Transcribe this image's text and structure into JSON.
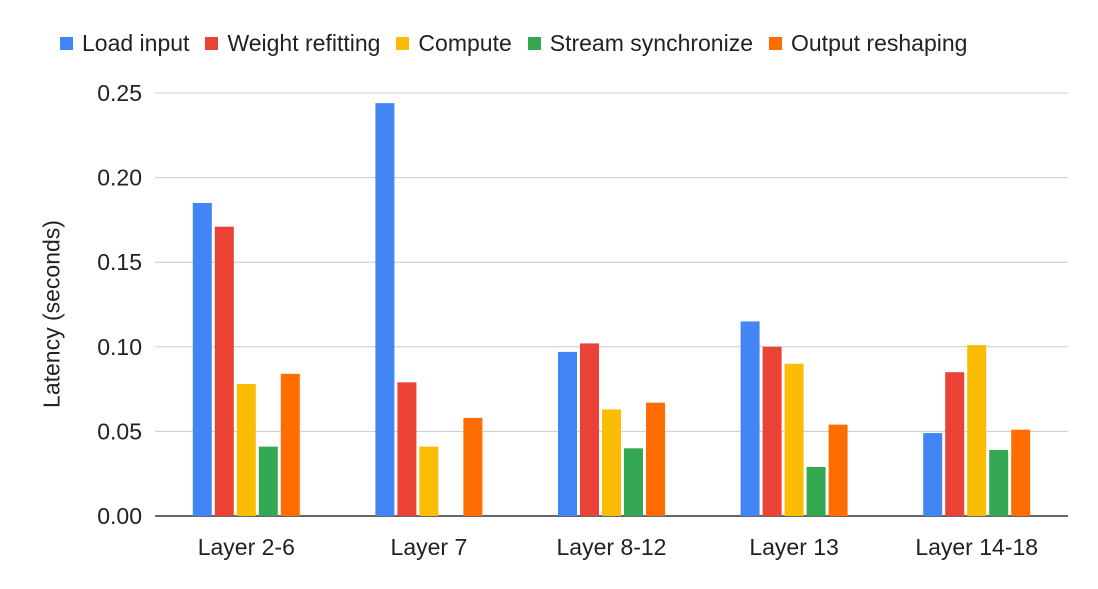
{
  "chart_data": {
    "type": "bar",
    "title": "",
    "xlabel": "",
    "ylabel": "Latency (seconds)",
    "ylim": [
      0,
      0.25
    ],
    "yticks": [
      "0.00",
      "0.05",
      "0.10",
      "0.15",
      "0.20",
      "0.25"
    ],
    "grid": true,
    "legend_position": "top",
    "categories": [
      "Layer 2-6",
      "Layer 7",
      "Layer 8-12",
      "Layer 13",
      "Layer 14-18"
    ],
    "series": [
      {
        "name": "Load input",
        "color": "#4285F4",
        "values": [
          0.185,
          0.244,
          0.097,
          0.115,
          0.049
        ]
      },
      {
        "name": "Weight refitting",
        "color": "#EA4335",
        "values": [
          0.171,
          0.079,
          0.102,
          0.1,
          0.085
        ]
      },
      {
        "name": "Compute",
        "color": "#FBBC04",
        "values": [
          0.078,
          0.041,
          0.063,
          0.09,
          0.101
        ]
      },
      {
        "name": "Stream synchronize",
        "color": "#34A853",
        "values": [
          0.041,
          0,
          0.04,
          0.029,
          0.039
        ]
      },
      {
        "name": "Output reshaping",
        "color": "#FF6D01",
        "values": [
          0.084,
          0.058,
          0.067,
          0.054,
          0.051
        ]
      }
    ]
  }
}
